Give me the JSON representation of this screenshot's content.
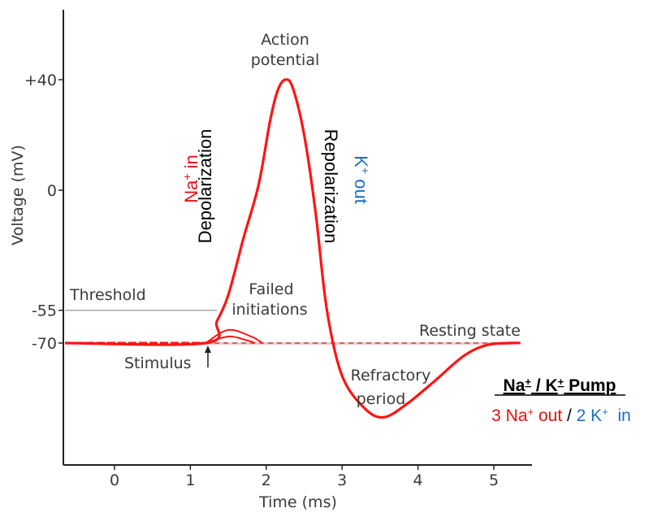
{
  "chart_data": {
    "type": "line",
    "title": "",
    "xlabel": "Time (ms)",
    "ylabel": "Voltage (mV)",
    "x_ticks": [
      "0",
      "1",
      "2",
      "3",
      "4",
      "5"
    ],
    "y_ticks": [
      "+40",
      "0",
      "-55",
      "-70"
    ],
    "y_tick_values": [
      40,
      0,
      -55,
      -70
    ],
    "xlim": [
      -0.65,
      5.5
    ],
    "series": [
      {
        "points": [
          [
            -0.65,
            -70
          ],
          [
            1.2,
            -70
          ],
          [
            1.35,
            -60
          ],
          [
            1.5,
            -48
          ],
          [
            1.7,
            -22
          ],
          [
            1.9,
            2
          ],
          [
            2.05,
            25
          ],
          [
            2.15,
            36
          ],
          [
            2.25,
            40
          ],
          [
            2.35,
            37
          ],
          [
            2.5,
            20
          ],
          [
            2.65,
            -10
          ],
          [
            2.8,
            -55
          ],
          [
            3.0,
            -85
          ],
          [
            3.3,
            -100
          ],
          [
            3.55,
            -104
          ],
          [
            3.85,
            -98
          ],
          [
            4.2,
            -88
          ],
          [
            4.6,
            -76
          ],
          [
            4.9,
            -71
          ],
          [
            5.2,
            -70
          ],
          [
            5.35,
            -70
          ]
        ]
      },
      {
        "points": [
          [
            1.2,
            -70
          ],
          [
            1.5,
            -64
          ],
          [
            1.8,
            -67
          ],
          [
            1.95,
            -70
          ]
        ]
      },
      {
        "points": [
          [
            1.2,
            -70
          ],
          [
            1.5,
            -67
          ],
          [
            1.72,
            -68.5
          ],
          [
            1.85,
            -70
          ]
        ]
      }
    ],
    "threshold": -55,
    "resting": -70,
    "stimulus_x": 1.2
  },
  "annotations": {
    "action_potential": [
      "Action",
      "potential"
    ],
    "threshold": "Threshold",
    "failed": [
      "Failed",
      "initiations"
    ],
    "resting": "Resting state",
    "stimulus": "Stimulus",
    "refractory": [
      "Refractory",
      "period"
    ],
    "depolarization": "Depolarization",
    "repolarization": "Repolarization",
    "na_in": {
      "ion": "Na",
      "charge": "+",
      "dir": " in"
    },
    "k_out": {
      "ion": "K",
      "charge": "+",
      "dir": " out"
    }
  },
  "pump": {
    "title": "Na",
    "title_charge": "+",
    "title_mid": " / K",
    "title_charge2": "+",
    "title_end": " Pump",
    "line_na": "3 Na",
    "line_na_charge": "+",
    "line_na_end": " out",
    "slash": " / ",
    "line_k": "2 K",
    "line_k_charge": "+",
    "line_k_end": "  in"
  },
  "colors": {
    "curve": "#ff1414",
    "na": "#e81010",
    "k": "#1f6fbf",
    "text": "#3a3a3a",
    "axis": "#222222",
    "threshold": "#aaaaaa"
  }
}
